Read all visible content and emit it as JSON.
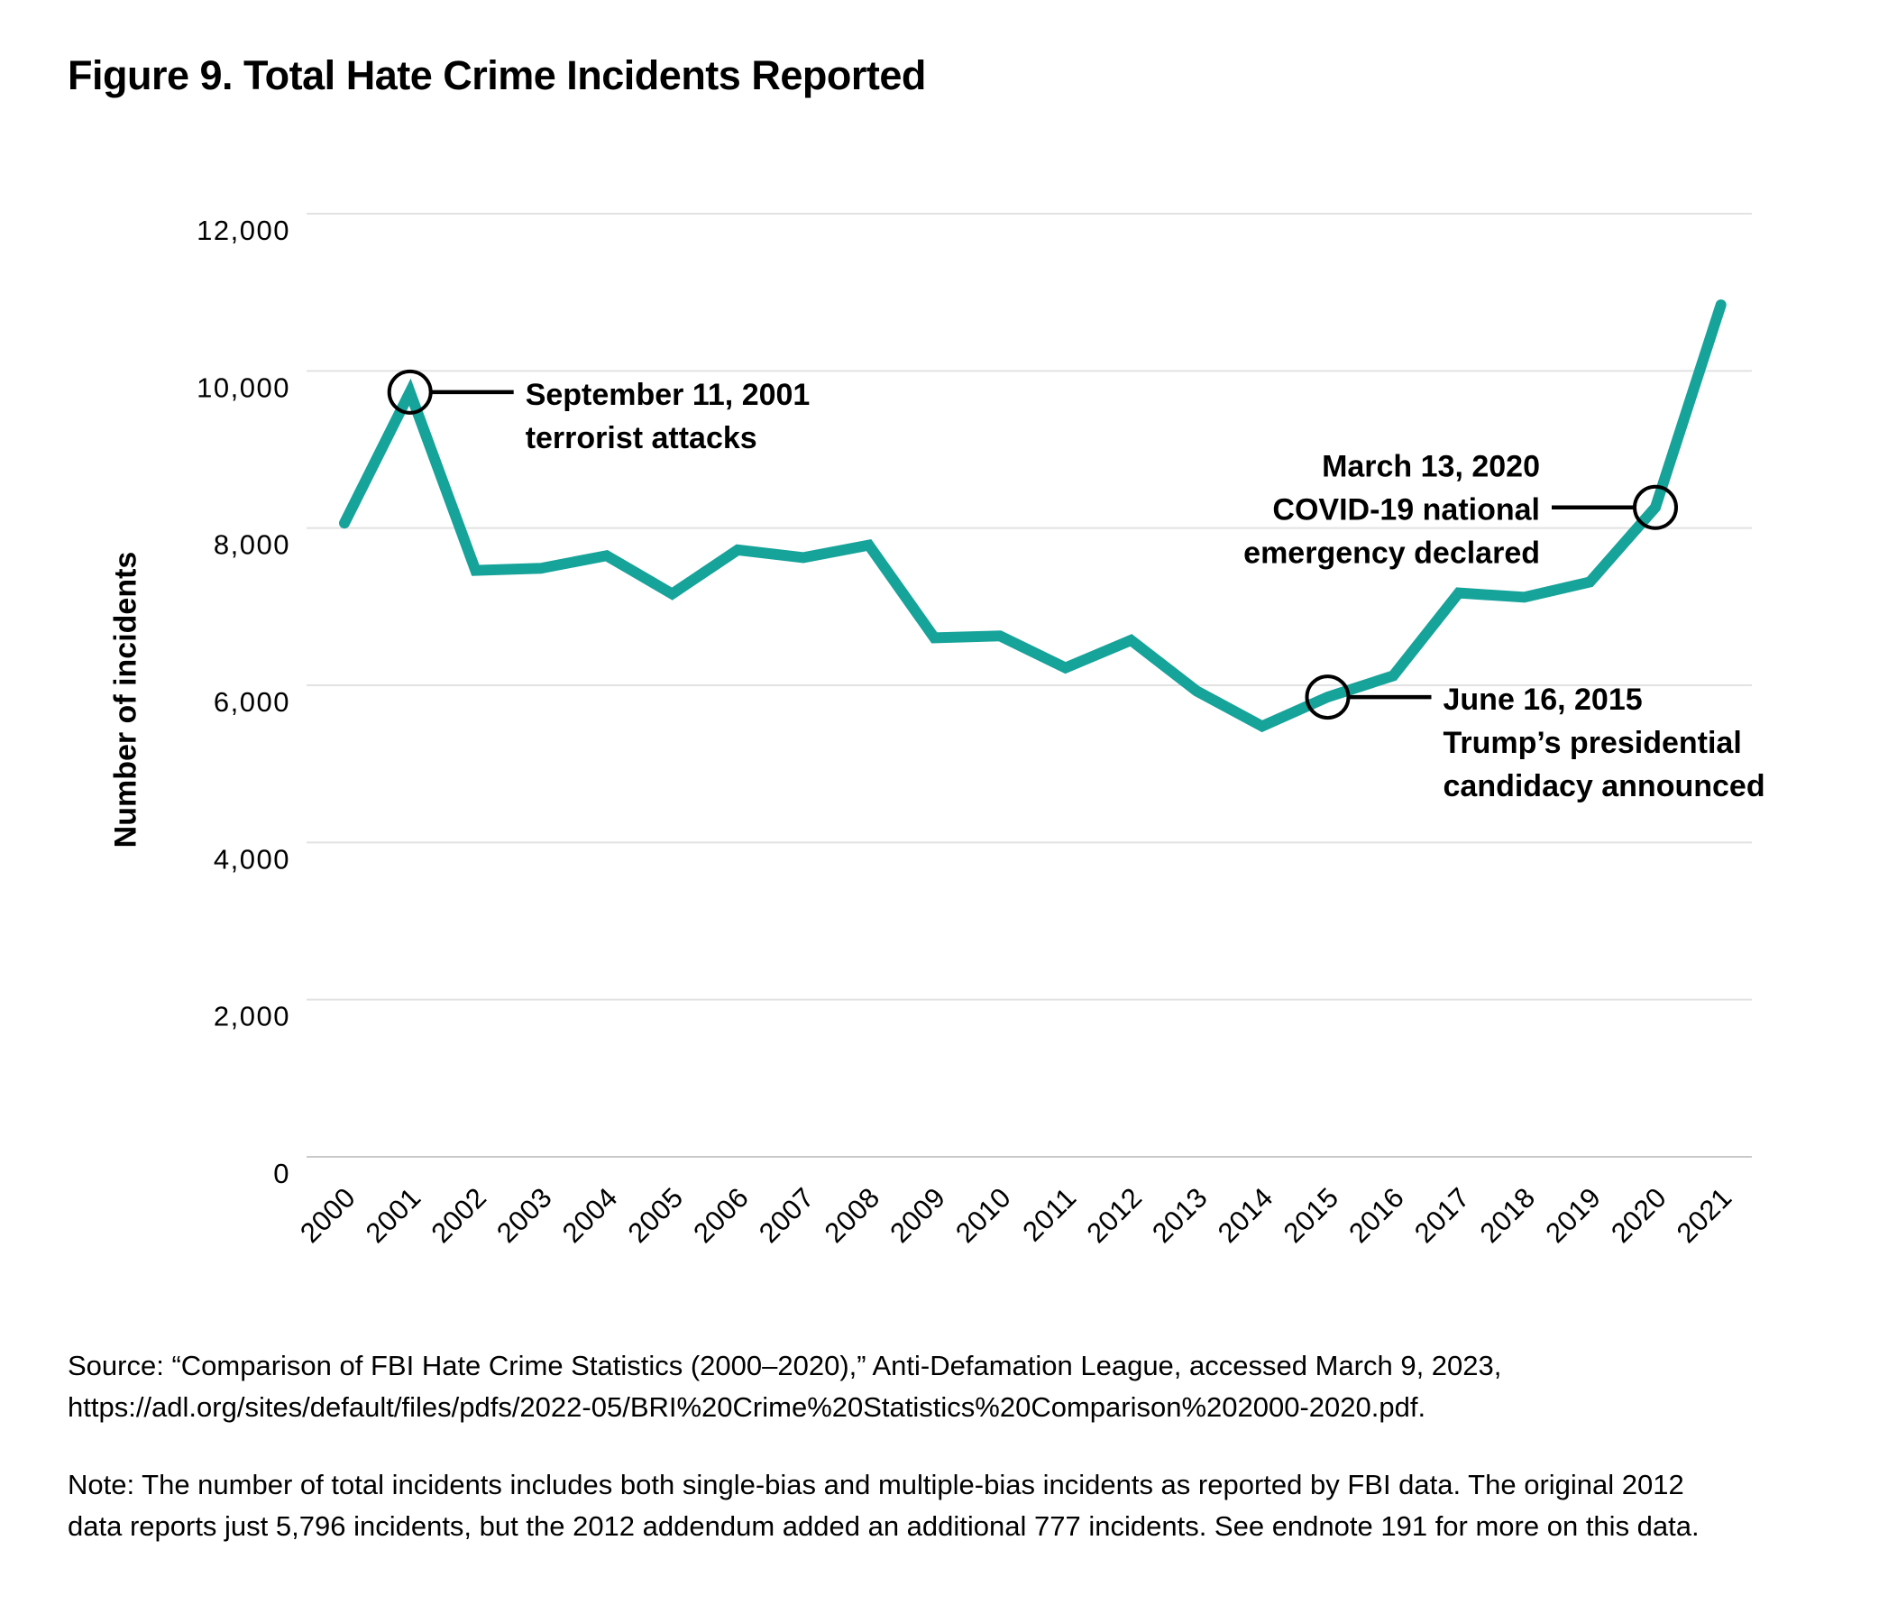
{
  "figure": {
    "title": "Figure 9. Total Hate Crime Incidents Reported",
    "source": "Source: “Comparison of FBI Hate Crime Statistics (2000–2020),” Anti-Defamation League, accessed March 9, 2023, https://adl.org/sites/default/files/pdfs/2022-05/BRI%20Crime%20Statistics%20Comparison%202000-2020.pdf.",
    "note": "Note: The number of total incidents includes both single-bias and multiple-bias incidents as reported by FBI data. The original 2012 data reports just 5,796 incidents, but the 2012 addendum added an additional 777 incidents. See endnote 191 for more on this data."
  },
  "chart_data": {
    "type": "line",
    "title": "Figure 9. Total Hate Crime Incidents Reported",
    "x": [
      2000,
      2001,
      2002,
      2003,
      2004,
      2005,
      2006,
      2007,
      2008,
      2009,
      2010,
      2011,
      2012,
      2013,
      2014,
      2015,
      2016,
      2017,
      2018,
      2019,
      2020,
      2021
    ],
    "values": [
      8063,
      9730,
      7462,
      7489,
      7649,
      7163,
      7722,
      7624,
      7783,
      6604,
      6628,
      6222,
      6573,
      5928,
      5479,
      5850,
      6121,
      7175,
      7120,
      7314,
      8263,
      10840
    ],
    "xlabel": "",
    "ylabel": "Number of incidents",
    "ylim": [
      0,
      12000
    ],
    "yticks": [
      0,
      2000,
      4000,
      6000,
      8000,
      10000,
      12000
    ],
    "ytick_labels": [
      "0",
      "2,000",
      "4,000",
      "6,000",
      "8,000",
      "10,000",
      "12,000"
    ],
    "grid": "horizontal",
    "legend": "none",
    "line_color": "#16A39A",
    "annotations": [
      {
        "year": 2001,
        "value": 9730,
        "label_side": "right",
        "align_line": 0,
        "lines": [
          "September 11, 2001",
          "terrorist attacks"
        ]
      },
      {
        "year": 2015,
        "value": 5850,
        "label_side": "right",
        "align_line": 0,
        "lines": [
          "June 16, 2015",
          "Trump’s presidential",
          "candidacy announced"
        ]
      },
      {
        "year": 2020,
        "value": 8263,
        "label_side": "left",
        "align_line": 1,
        "lines": [
          "March 13, 2020",
          "COVID-19 national",
          "emergency declared"
        ]
      }
    ]
  }
}
